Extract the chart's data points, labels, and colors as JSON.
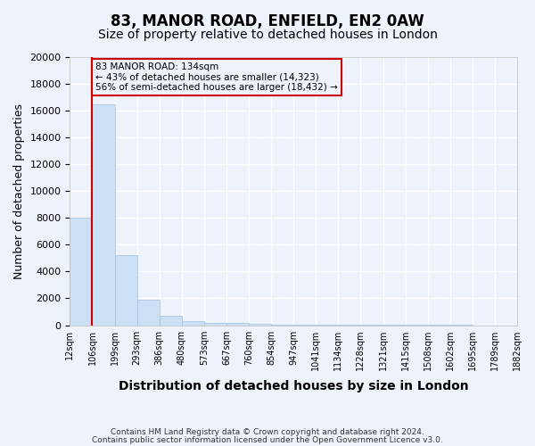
{
  "title1": "83, MANOR ROAD, ENFIELD, EN2 0AW",
  "title2": "Size of property relative to detached houses in London",
  "xlabel": "Distribution of detached houses by size in London",
  "ylabel": "Number of detached properties",
  "footer1": "Contains HM Land Registry data © Crown copyright and database right 2024.",
  "footer2": "Contains public sector information licensed under the Open Government Licence v3.0.",
  "tick_labels": [
    "12sqm",
    "106sqm",
    "199sqm",
    "293sqm",
    "386sqm",
    "480sqm",
    "573sqm",
    "667sqm",
    "760sqm",
    "854sqm",
    "947sqm",
    "1041sqm",
    "1134sqm",
    "1228sqm",
    "1321sqm",
    "1415sqm",
    "1508sqm",
    "1602sqm",
    "1695sqm",
    "1789sqm",
    "1882sqm"
  ],
  "values": [
    8000,
    16500,
    5200,
    1900,
    700,
    300,
    200,
    150,
    100,
    50,
    30,
    20,
    10,
    7,
    5,
    3,
    2,
    2,
    1,
    1
  ],
  "bar_color": "#cce0f5",
  "bar_edge_color": "#a0c0e0",
  "vline_x": 1,
  "vline_color": "#cc0000",
  "annotation_text": "83 MANOR ROAD: 134sqm\n← 43% of detached houses are smaller (14,323)\n56% of semi-detached houses are larger (18,432) →",
  "annotation_box_color": "#cc0000",
  "ylim": [
    0,
    20000
  ],
  "yticks": [
    0,
    2000,
    4000,
    6000,
    8000,
    10000,
    12000,
    14000,
    16000,
    18000,
    20000
  ],
  "bg_color": "#eef2fb",
  "grid_color": "#ffffff",
  "title1_fontsize": 12,
  "title2_fontsize": 10,
  "xlabel_fontsize": 10,
  "ylabel_fontsize": 9
}
